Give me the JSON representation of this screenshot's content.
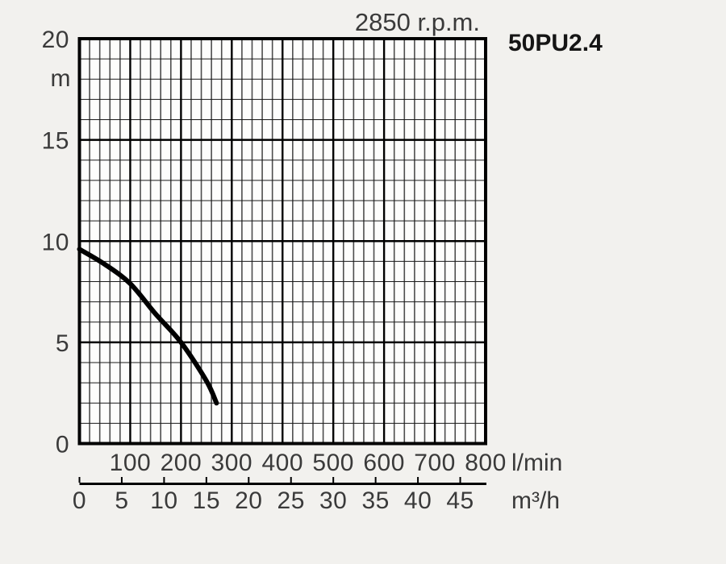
{
  "page": {
    "background": "#f2f1ee",
    "plot_background": "#fdfdfc"
  },
  "chart_data": {
    "type": "line",
    "title": "2850 r.p.m.",
    "model": "50PU2.4",
    "y_axis": {
      "unit": "m",
      "min": 0,
      "max": 20,
      "major_step": 5,
      "minor_step": 1,
      "tick_labels": [
        "0",
        "5",
        "10",
        "15",
        "20"
      ]
    },
    "x_axis_primary": {
      "unit": "l/min",
      "min": 0,
      "max": 800,
      "major_step": 100,
      "minor_step": 20,
      "tick_labels": [
        "100",
        "200",
        "300",
        "400",
        "500",
        "600",
        "700",
        "800"
      ]
    },
    "x_axis_secondary": {
      "unit": "m³/h",
      "min": 0,
      "max": 45,
      "step": 5,
      "lmin_per_m3h": 16.6667,
      "tick_labels": [
        "0",
        "5",
        "10",
        "15",
        "20",
        "25",
        "30",
        "35",
        "40",
        "45"
      ]
    },
    "grid": {
      "on": true,
      "border_color": "#000000",
      "major_color": "#000000",
      "minor_vertical_color": "#4d4d4d",
      "minor_horizontal_color": "#1a1a1a"
    },
    "legend": {
      "shown": false
    },
    "series": [
      {
        "name": "head-flow-curve",
        "color": "#000000",
        "points": [
          {
            "q_lmin": 0,
            "h_m": 9.6
          },
          {
            "q_lmin": 50,
            "h_m": 8.85
          },
          {
            "q_lmin": 100,
            "h_m": 7.9
          },
          {
            "q_lmin": 150,
            "h_m": 6.4
          },
          {
            "q_lmin": 200,
            "h_m": 5.0
          },
          {
            "q_lmin": 250,
            "h_m": 3.1
          },
          {
            "q_lmin": 270,
            "h_m": 2.0
          }
        ]
      }
    ]
  }
}
